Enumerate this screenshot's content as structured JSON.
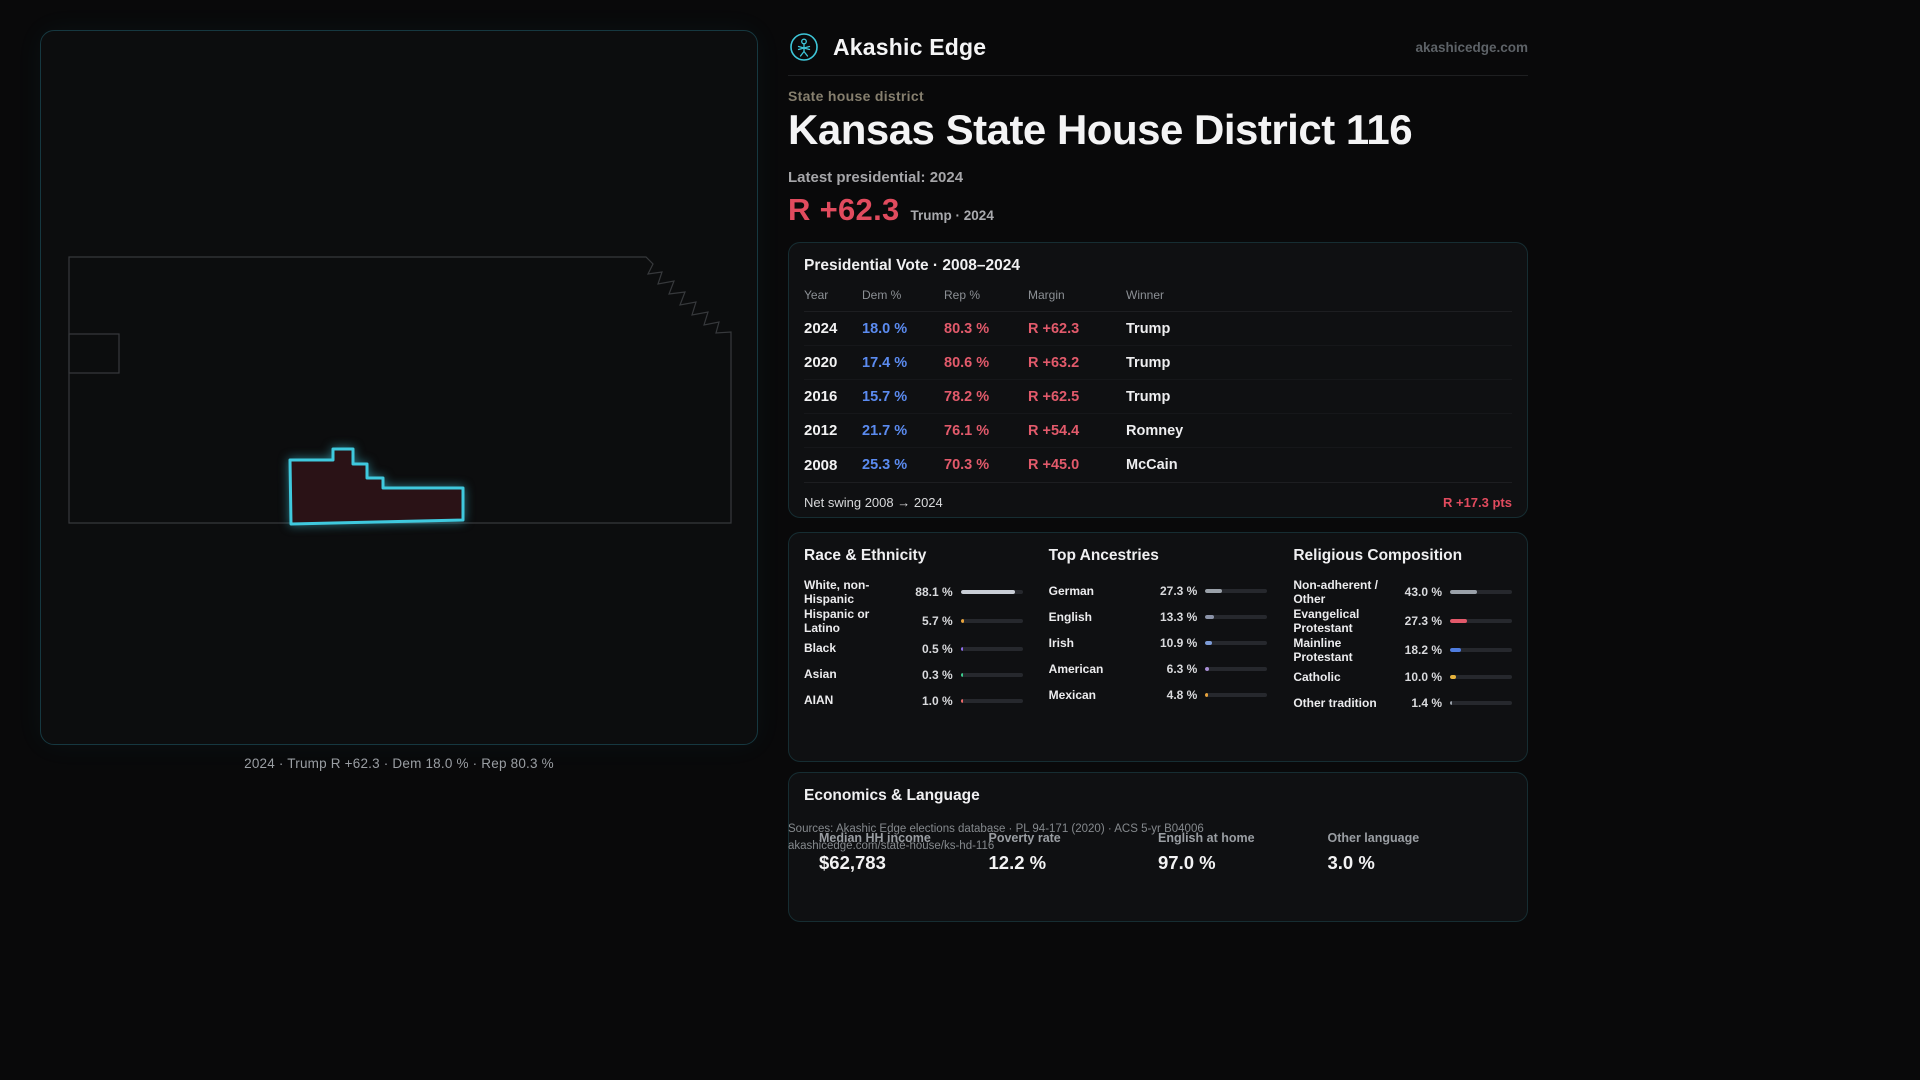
{
  "brand": {
    "name": "Akashic Edge",
    "domain": "akashicedge.com"
  },
  "page": {
    "kicker": "State house district",
    "title": "Kansas State House District 116",
    "latest_label": "Latest presidential: 2024",
    "margin_value": "R +62.3",
    "margin_context": "Trump · 2024"
  },
  "map": {
    "caption": "2024 · Trump R +62.3 · Dem 18.0 % · Rep 80.3 %"
  },
  "presidential": {
    "title": "Presidential Vote · 2008–2024",
    "columns": [
      "Year",
      "Dem %",
      "Rep %",
      "Margin",
      "Winner"
    ],
    "rows": [
      {
        "year": "2024",
        "dem": "18.0 %",
        "rep": "80.3 %",
        "margin": "R +62.3",
        "winner": "Trump"
      },
      {
        "year": "2020",
        "dem": "17.4 %",
        "rep": "80.6 %",
        "margin": "R +63.2",
        "winner": "Trump"
      },
      {
        "year": "2016",
        "dem": "15.7 %",
        "rep": "78.2 %",
        "margin": "R +62.5",
        "winner": "Trump"
      },
      {
        "year": "2012",
        "dem": "21.7 %",
        "rep": "76.1 %",
        "margin": "R +54.4",
        "winner": "Romney"
      },
      {
        "year": "2008",
        "dem": "25.3 %",
        "rep": "70.3 %",
        "margin": "R +45.0",
        "winner": "McCain"
      }
    ],
    "net_swing_label": "Net swing 2008 → 2024",
    "net_swing_value": "R +17.3 pts"
  },
  "demographics": {
    "race": {
      "title": "Race & Ethnicity",
      "rows": [
        {
          "label": "White, non-Hispanic",
          "value": "88.1 %",
          "pct": 88.1,
          "color": "#c9ced6"
        },
        {
          "label": "Hispanic or Latino",
          "value": "5.7 %",
          "pct": 5.7,
          "color": "#e7a33c"
        },
        {
          "label": "Black",
          "value": "0.5 %",
          "pct": 0.5,
          "color": "#8f6df0"
        },
        {
          "label": "Asian",
          "value": "0.3 %",
          "pct": 0.3,
          "color": "#3ccf8e"
        },
        {
          "label": "AIAN",
          "value": "1.0 %",
          "pct": 1.0,
          "color": "#ef6a6a"
        }
      ]
    },
    "ancestries": {
      "title": "Top Ancestries",
      "rows": [
        {
          "label": "German",
          "value": "27.3 %",
          "pct": 27.3,
          "color": "#9aa1a9"
        },
        {
          "label": "English",
          "value": "13.3 %",
          "pct": 13.3,
          "color": "#8b93a8"
        },
        {
          "label": "Irish",
          "value": "10.9 %",
          "pct": 10.9,
          "color": "#7c9bd6"
        },
        {
          "label": "American",
          "value": "6.3 %",
          "pct": 6.3,
          "color": "#a98fd6"
        },
        {
          "label": "Mexican",
          "value": "4.8 %",
          "pct": 4.8,
          "color": "#e7a33c"
        }
      ]
    },
    "religion": {
      "title": "Religious Composition",
      "rows": [
        {
          "label": "Non-adherent / Other",
          "value": "43.0 %",
          "pct": 43.0,
          "color": "#9aa1a9"
        },
        {
          "label": "Evangelical Protestant",
          "value": "27.3 %",
          "pct": 27.3,
          "color": "#e2596a"
        },
        {
          "label": "Mainline Protestant",
          "value": "18.2 %",
          "pct": 18.2,
          "color": "#4f7de0"
        },
        {
          "label": "Catholic",
          "value": "10.0 %",
          "pct": 10.0,
          "color": "#e7b33c"
        },
        {
          "label": "Other tradition",
          "value": "1.4 %",
          "pct": 1.4,
          "color": "#9aa1a9"
        }
      ]
    }
  },
  "economics": {
    "title": "Economics & Language",
    "stats": [
      {
        "label": "Median HH income",
        "value": "$62,783"
      },
      {
        "label": "Poverty rate",
        "value": "12.2 %"
      },
      {
        "label": "English at home",
        "value": "97.0 %"
      },
      {
        "label": "Other language",
        "value": "3.0 %"
      }
    ]
  },
  "footer": {
    "line1": "Sources: Akashic Edge elections database · PL 94-171 (2020) · ACS 5-yr B04006",
    "line2": "akashicedge.com/state-house/ks-hd-116"
  }
}
